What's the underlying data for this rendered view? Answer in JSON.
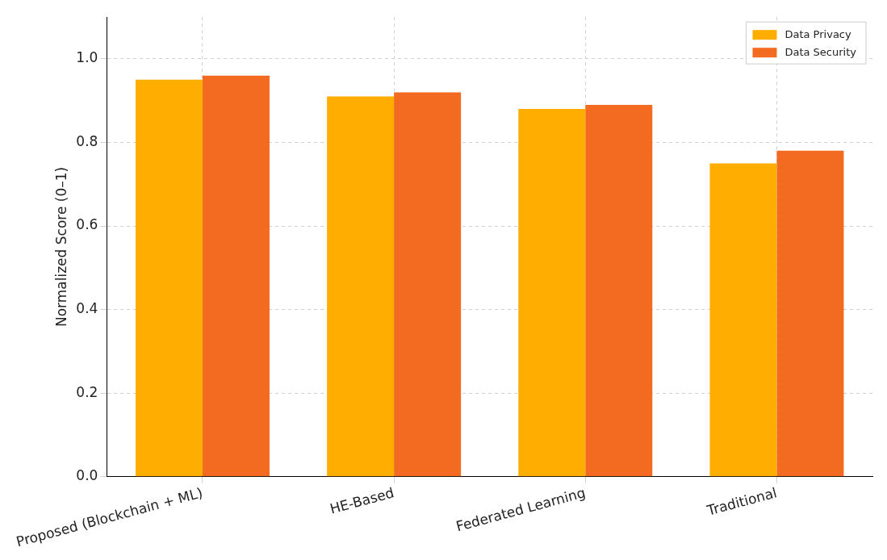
{
  "chart_data": {
    "type": "bar",
    "ylabel": "Normalized Score (0–1)",
    "categories": [
      "Proposed (Blockchain + ML)",
      "HE-Based",
      "Federated Learning",
      "Traditional"
    ],
    "series": [
      {
        "name": "Data Privacy",
        "color": "#ffae00",
        "values": [
          0.95,
          0.91,
          0.88,
          0.75
        ]
      },
      {
        "name": "Data Security",
        "color": "#f26b21",
        "values": [
          0.96,
          0.92,
          0.89,
          0.78
        ]
      }
    ],
    "ylim": [
      0,
      1.1
    ],
    "yticks": [
      {
        "value": 0,
        "label": "0.0"
      },
      0.2,
      0.4,
      0.6,
      0.8,
      {
        "value": 1,
        "label": "1.0"
      }
    ],
    "grid": true,
    "legend": "top right"
  }
}
